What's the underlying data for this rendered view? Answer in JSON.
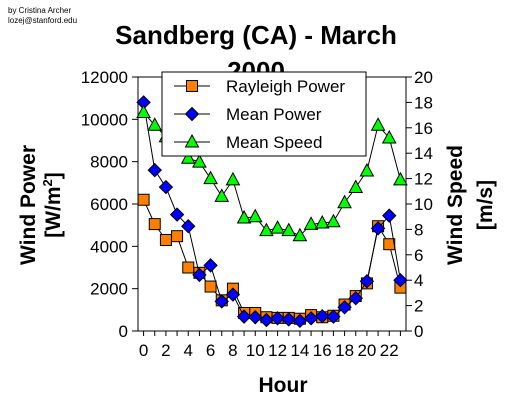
{
  "credit": [
    "by Cristina Archer",
    "lozej@stanford.edu"
  ],
  "chart_data": {
    "type": "line",
    "title": "Sandberg (CA) - March 2000",
    "title_lines": [
      "Sandberg (CA) - March",
      "2000"
    ],
    "xlabel": "Hour",
    "ylabel_left": "Wind Power [W/m2]",
    "ylabel_left_lines": [
      "Wind Power",
      "[W/m",
      "2",
      "]"
    ],
    "ylabel_right": "Wind Speed [m/s]",
    "ylabel_right_lines": [
      "Wind Speed",
      "[m/s]"
    ],
    "x": [
      0,
      1,
      2,
      3,
      4,
      5,
      6,
      7,
      8,
      9,
      10,
      11,
      12,
      13,
      14,
      15,
      16,
      17,
      18,
      19,
      20,
      21,
      22,
      23
    ],
    "x_ticks": [
      0,
      2,
      4,
      6,
      8,
      10,
      12,
      14,
      16,
      18,
      20,
      22
    ],
    "xlim": [
      -0.5,
      23.5
    ],
    "ylim_left": [
      0,
      12000
    ],
    "y_ticks_left": [
      0,
      2000,
      4000,
      6000,
      8000,
      10000,
      12000
    ],
    "ylim_right": [
      0,
      20
    ],
    "y_ticks_right": [
      0,
      2,
      4,
      6,
      8,
      10,
      12,
      14,
      16,
      18,
      20
    ],
    "grid": false,
    "legend_position": "top-center",
    "series": [
      {
        "name": "Rayleigh Power",
        "axis": "left",
        "marker": "square",
        "color": "#ff8000",
        "values": [
          6200,
          5050,
          4300,
          4480,
          3000,
          2750,
          2100,
          1450,
          2000,
          850,
          850,
          650,
          620,
          620,
          580,
          750,
          650,
          720,
          1250,
          1650,
          2250,
          4950,
          4100,
          2050
        ]
      },
      {
        "name": "Mean Power",
        "axis": "left",
        "marker": "diamond",
        "color": "#0000ff",
        "values": [
          10800,
          7600,
          6800,
          5500,
          4950,
          2650,
          3100,
          1400,
          1720,
          680,
          650,
          520,
          600,
          550,
          480,
          600,
          700,
          680,
          1120,
          1550,
          2350,
          4850,
          5450,
          2400
        ]
      },
      {
        "name": "Mean Speed",
        "axis": "right",
        "marker": "triangle",
        "color": "#00ff00",
        "values": [
          17.2,
          16.2,
          15.3,
          15.4,
          13.6,
          13.3,
          12.0,
          10.6,
          11.9,
          8.9,
          9.0,
          7.9,
          8.1,
          7.9,
          7.5,
          8.4,
          8.5,
          8.6,
          10.1,
          11.3,
          12.6,
          16.2,
          15.2,
          11.9
        ]
      }
    ]
  }
}
